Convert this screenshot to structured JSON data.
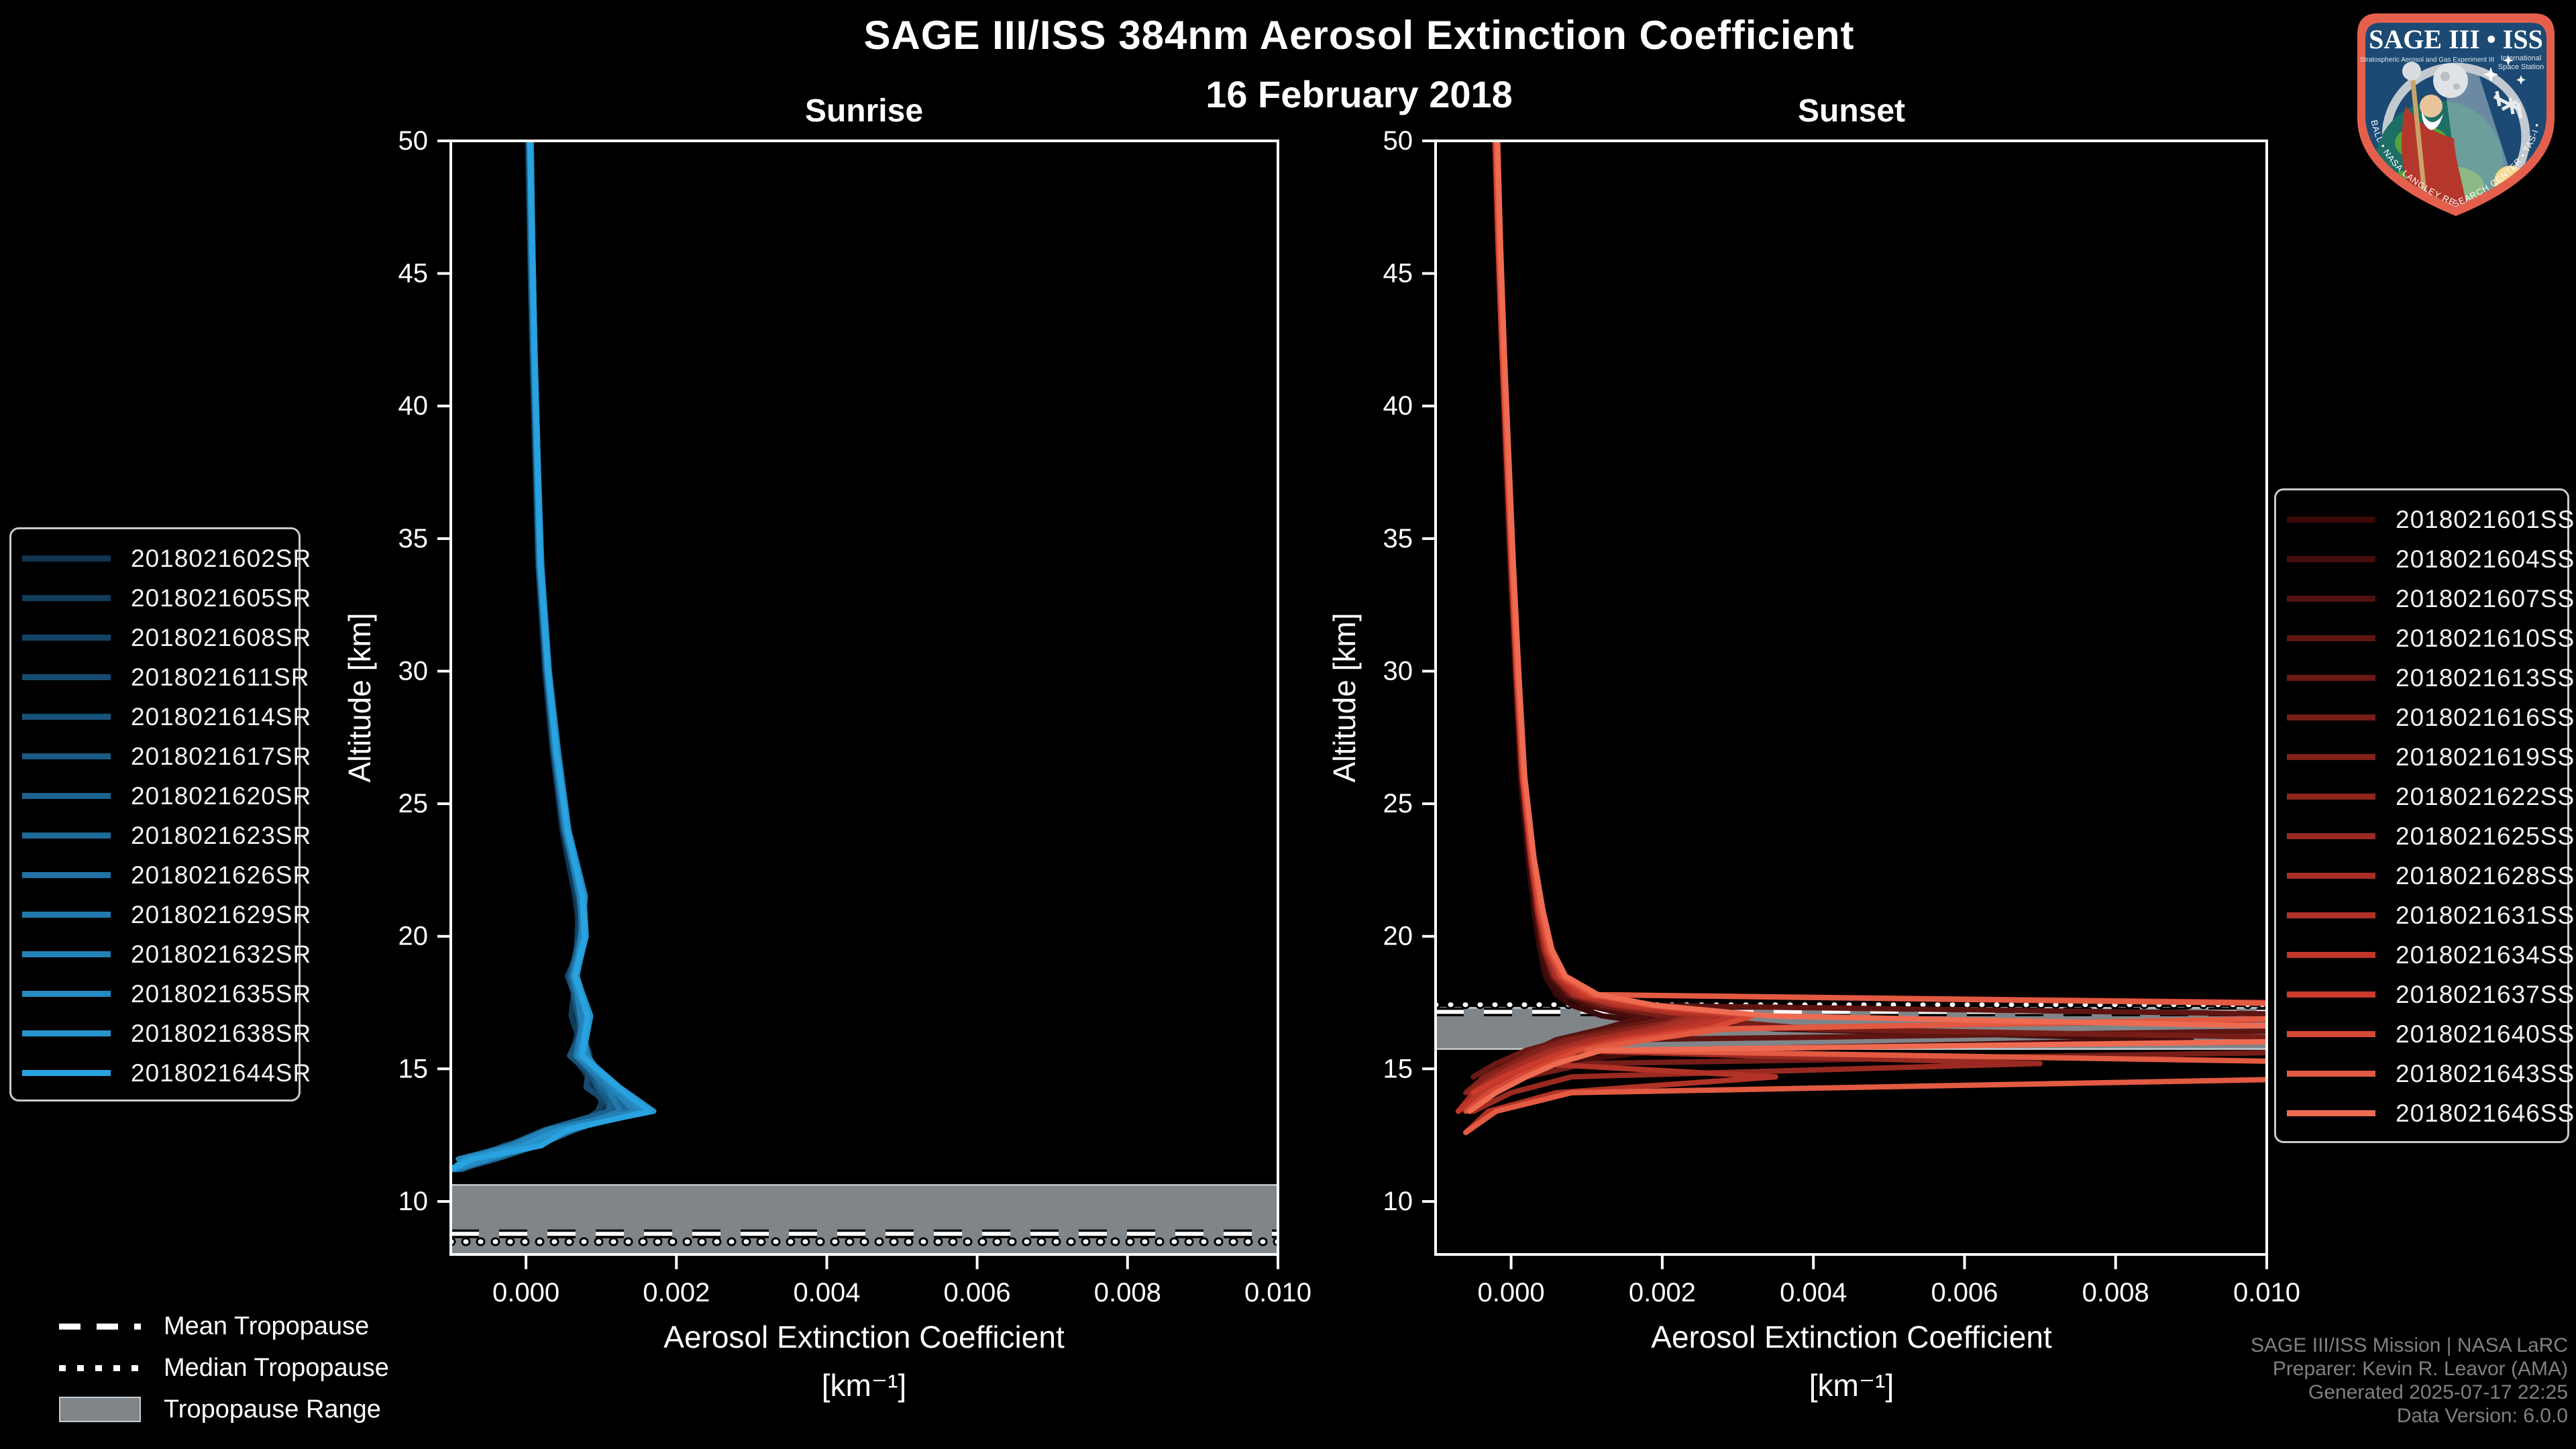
{
  "header": {
    "title": "SAGE III/ISS 384nm Aerosol Extinction Coefficient",
    "date": "16 February 2018"
  },
  "colors": {
    "background": "#000000",
    "text": "#ffffff",
    "tropopause_band": "#808589",
    "tropopause_band_edge": "#c6cbd0",
    "tropopause_line": "#ffffff",
    "tropopause_line_outline": "#000000",
    "footer_text": "#7d827f",
    "legend_border": "#c9c9c9",
    "logo_border": "#e4604d",
    "logo_field": "#1c4a74"
  },
  "tropopause_legend": {
    "items": [
      {
        "label": "Mean Tropopause",
        "style": "dashed"
      },
      {
        "label": "Median Tropopause",
        "style": "dotted"
      },
      {
        "label": "Tropopause Range",
        "style": "band"
      }
    ]
  },
  "footer": {
    "lines": [
      "SAGE III/ISS Mission | NASA LaRC",
      "Preparer: Kevin R. Leavor (AMA)",
      "Generated 2025-07-17 22:25",
      "Data Version: 6.0.0"
    ]
  },
  "logo": {
    "title": "SAGE III • ISS",
    "subtitle_left": "Stratospheric Aerosol and Gas Experiment III",
    "subtitle_right_1": "International",
    "subtitle_right_2": "Space Station",
    "ring_text": "BALL • NASA LANGLEY RESEARCH CENTER • TAS-I • ESA"
  },
  "chart_data": [
    {
      "type": "line",
      "id": "sunrise",
      "title": "Sunrise",
      "xlabel": "Aerosol Extinction Coefficient",
      "xlabel_units": "[km⁻¹]",
      "ylabel": "Altitude [km]",
      "xlim": [
        -0.001,
        0.01
      ],
      "ylim": [
        8,
        50
      ],
      "grid": false,
      "xticks": [
        0.0,
        0.002,
        0.004,
        0.006,
        0.008,
        0.01
      ],
      "xtick_labels": [
        "0.000",
        "0.002",
        "0.004",
        "0.006",
        "0.008",
        "0.010"
      ],
      "yticks": [
        50,
        45,
        40,
        35,
        30,
        25,
        20,
        15,
        10
      ],
      "ytick_labels": [
        "50",
        "45",
        "40",
        "35",
        "30",
        "25",
        "20",
        "15",
        "10"
      ],
      "ext_scale": 0.001,
      "ext_units": "values are multiples of 0.001 km^-1",
      "altitudes_km": [
        50,
        46,
        42,
        38,
        34,
        30,
        27,
        24,
        21.5,
        20,
        18.5,
        17,
        15.5,
        14.3,
        13.4,
        12.7,
        12.1,
        11.6,
        11.2
      ],
      "tropopause": {
        "mean_km": 8.78,
        "median_km": 8.48,
        "range_top_km": 10.62,
        "range_bottom_km": 8.0
      },
      "series": [
        {
          "name": "2018021602SR",
          "color": "#0f3550",
          "ext_1e3": [
            0.02,
            0.05,
            0.08,
            0.12,
            0.16,
            0.25,
            0.35,
            0.48,
            0.65,
            0.72,
            0.58,
            0.72,
            0.62,
            0.92,
            1.05,
            0.4,
            0.05,
            -0.45,
            null
          ]
        },
        {
          "name": "2018021605SR",
          "color": "#113c5a",
          "ext_1e3": [
            0.04,
            0.06,
            0.1,
            0.13,
            0.18,
            0.27,
            0.36,
            0.5,
            0.7,
            0.68,
            0.66,
            0.6,
            0.78,
            0.85,
            1.15,
            0.3,
            -0.2,
            -0.6,
            null
          ]
        },
        {
          "name": "2018021608SR",
          "color": "#134364",
          "ext_1e3": [
            0.03,
            0.07,
            0.09,
            0.14,
            0.17,
            0.26,
            0.38,
            0.52,
            0.68,
            0.8,
            0.55,
            0.75,
            0.65,
            1.1,
            0.95,
            0.6,
            0.1,
            -0.8,
            -0.95
          ]
        },
        {
          "name": "2018021611SR",
          "color": "#154b6f",
          "ext_1e3": [
            0.05,
            0.08,
            0.11,
            0.15,
            0.19,
            0.29,
            0.4,
            0.55,
            0.75,
            0.7,
            0.6,
            0.68,
            0.85,
            0.8,
            1.25,
            0.45,
            -0.3,
            -0.7,
            null
          ]
        },
        {
          "name": "2018021614SR",
          "color": "#175279",
          "ext_1e3": [
            0.04,
            0.07,
            0.1,
            0.14,
            0.18,
            0.28,
            0.37,
            0.5,
            0.72,
            0.76,
            0.64,
            0.82,
            0.58,
            1.05,
            1.4,
            0.35,
            0.0,
            -0.5,
            -0.85
          ]
        },
        {
          "name": "2018021617SR",
          "color": "#195a84",
          "ext_1e3": [
            0.06,
            0.09,
            0.12,
            0.16,
            0.2,
            0.3,
            0.42,
            0.56,
            0.78,
            0.72,
            0.58,
            0.7,
            0.75,
            0.95,
            1.2,
            0.55,
            -0.15,
            -0.65,
            null
          ]
        },
        {
          "name": "2018021620SR",
          "color": "#1b628e",
          "ext_1e3": [
            0.05,
            0.08,
            0.11,
            0.15,
            0.19,
            0.28,
            0.39,
            0.53,
            0.7,
            0.8,
            0.66,
            0.78,
            0.68,
            1.15,
            1.1,
            0.25,
            -0.25,
            -0.85,
            null
          ]
        },
        {
          "name": "2018021623SR",
          "color": "#1d6a99",
          "ext_1e3": [
            0.04,
            0.06,
            0.09,
            0.13,
            0.17,
            0.27,
            0.37,
            0.51,
            0.73,
            0.74,
            0.6,
            0.74,
            0.8,
            1.0,
            1.35,
            0.65,
            0.15,
            -0.4,
            -0.9
          ]
        },
        {
          "name": "2018021626SR",
          "color": "#1f72a3",
          "ext_1e3": [
            0.06,
            0.08,
            0.11,
            0.15,
            0.2,
            0.29,
            0.41,
            0.55,
            0.76,
            0.78,
            0.68,
            0.84,
            0.72,
            1.2,
            1.5,
            0.4,
            -0.1,
            -0.75,
            null
          ]
        },
        {
          "name": "2018021629SR",
          "color": "#217aae",
          "ext_1e3": [
            0.05,
            0.07,
            0.1,
            0.14,
            0.18,
            0.28,
            0.38,
            0.52,
            0.71,
            0.75,
            0.62,
            0.76,
            0.66,
            1.08,
            1.25,
            0.5,
            0.05,
            -0.6,
            -1.0
          ]
        },
        {
          "name": "2018021632SR",
          "color": "#2383b8",
          "ext_1e3": [
            0.07,
            0.09,
            0.12,
            0.16,
            0.21,
            0.31,
            0.43,
            0.57,
            0.79,
            0.73,
            0.65,
            0.72,
            0.82,
            1.12,
            1.45,
            0.3,
            -0.2,
            -0.9,
            null
          ]
        },
        {
          "name": "2018021635SR",
          "color": "#258bc3",
          "ext_1e3": [
            0.05,
            0.08,
            0.11,
            0.15,
            0.19,
            0.29,
            0.4,
            0.54,
            0.74,
            0.77,
            0.63,
            0.8,
            0.7,
            1.18,
            1.55,
            0.6,
            0.1,
            -0.5,
            -0.95
          ]
        },
        {
          "name": "2018021638SR",
          "color": "#2794ce",
          "ext_1e3": [
            0.06,
            0.09,
            0.12,
            0.16,
            0.2,
            0.3,
            0.41,
            0.56,
            0.77,
            0.8,
            0.67,
            0.86,
            0.76,
            1.25,
            1.7,
            0.45,
            -0.05,
            -0.8,
            -1.0
          ]
        },
        {
          "name": "2018021644SR",
          "color": "#29a3e0",
          "ext_1e3": [
            0.05,
            0.08,
            0.11,
            0.15,
            0.19,
            0.29,
            0.4,
            0.55,
            0.75,
            0.78,
            0.65,
            0.82,
            0.74,
            1.22,
            1.65,
            0.55,
            0.2,
            -0.7,
            -1.0
          ]
        }
      ]
    },
    {
      "type": "line",
      "id": "sunset",
      "title": "Sunset",
      "xlabel": "Aerosol Extinction Coefficient",
      "xlabel_units": "[km⁻¹]",
      "ylabel": "Altitude [km]",
      "xlim": [
        -0.001,
        0.01
      ],
      "ylim": [
        8,
        50
      ],
      "grid": false,
      "xticks": [
        0.0,
        0.002,
        0.004,
        0.006,
        0.008,
        0.01
      ],
      "xtick_labels": [
        "0.000",
        "0.002",
        "0.004",
        "0.006",
        "0.008",
        "0.010"
      ],
      "yticks": [
        50,
        45,
        40,
        35,
        30,
        25,
        20,
        15,
        10
      ],
      "ytick_labels": [
        "50",
        "45",
        "40",
        "35",
        "30",
        "25",
        "20",
        "15",
        "10"
      ],
      "ext_scale": 0.001,
      "ext_units": "values are multiples of 0.001 km^-1",
      "altitudes_km": [
        50,
        46,
        42,
        38,
        34,
        30,
        26,
        23,
        21,
        19.5,
        18.5,
        17.8,
        17.4,
        17.0,
        16.5,
        16.1,
        15.7,
        15.2,
        14.7,
        14.1,
        13.4,
        12.6
      ],
      "tropopause": {
        "mean_km": 17.15,
        "median_km": 17.42,
        "range_top_km": 17.3,
        "range_bottom_km": 15.75
      },
      "series": [
        {
          "name": "2018021601SS",
          "color": "#3a0909",
          "ext_1e3": [
            -0.2,
            -0.15,
            -0.12,
            -0.08,
            -0.02,
            0.05,
            0.12,
            0.22,
            0.3,
            0.38,
            0.45,
            0.6,
            0.8,
            1.2,
            2.5,
            1.0,
            0.4,
            0.1,
            -0.2,
            -0.4,
            null,
            null
          ]
        },
        {
          "name": "2018021604SS",
          "color": "#460d0c",
          "ext_1e3": [
            -0.22,
            -0.18,
            -0.12,
            -0.06,
            0.0,
            0.06,
            0.14,
            0.24,
            0.32,
            0.4,
            0.5,
            0.7,
            1.0,
            1.6,
            3.5,
            9.0,
            2.0,
            0.5,
            0.0,
            -0.5,
            null,
            null
          ]
        },
        {
          "name": "2018021607SS",
          "color": "#52110f",
          "ext_1e3": [
            -0.18,
            -0.14,
            -0.1,
            -0.05,
            0.02,
            0.08,
            0.15,
            0.25,
            0.35,
            0.42,
            0.55,
            0.75,
            1.1,
            1.8,
            1.2,
            0.6,
            0.3,
            -0.1,
            -0.4,
            null,
            null,
            null
          ]
        },
        {
          "name": "2018021610SS",
          "color": "#5e1512",
          "ext_1e3": [
            -0.2,
            -0.16,
            -0.11,
            -0.05,
            0.01,
            0.07,
            0.15,
            0.26,
            0.34,
            0.44,
            0.6,
            0.9,
            1.5,
            12.0,
            12.0,
            1.5,
            0.6,
            0.2,
            -0.3,
            null,
            null,
            null
          ]
        },
        {
          "name": "2018021613SS",
          "color": "#6a1915",
          "ext_1e3": [
            -0.19,
            -0.15,
            -0.1,
            -0.04,
            0.02,
            0.08,
            0.16,
            0.27,
            0.36,
            0.46,
            0.58,
            0.8,
            1.3,
            2.2,
            1.4,
            0.7,
            0.2,
            -0.2,
            -0.5,
            null,
            null,
            null
          ]
        },
        {
          "name": "2018021616SS",
          "color": "#761d18",
          "ext_1e3": [
            -0.21,
            -0.17,
            -0.12,
            -0.06,
            0.0,
            0.06,
            0.14,
            0.25,
            0.34,
            0.43,
            0.55,
            0.78,
            1.2,
            2.0,
            4.0,
            12.0,
            12.0,
            1.0,
            0.2,
            -0.4,
            null,
            null
          ]
        },
        {
          "name": "2018021619SS",
          "color": "#82221b",
          "ext_1e3": [
            -0.18,
            -0.14,
            -0.09,
            -0.04,
            0.03,
            0.09,
            0.17,
            0.28,
            0.37,
            0.47,
            0.6,
            0.85,
            1.4,
            2.6,
            1.6,
            0.8,
            0.35,
            0.0,
            -0.35,
            -0.6,
            null,
            null
          ]
        },
        {
          "name": "2018021622SS",
          "color": "#8e261e",
          "ext_1e3": [
            -0.2,
            -0.16,
            -0.11,
            -0.05,
            0.01,
            0.08,
            0.16,
            0.26,
            0.35,
            0.45,
            0.58,
            0.82,
            1.35,
            2.4,
            1.8,
            1.0,
            0.5,
            0.1,
            -0.25,
            -0.55,
            null,
            null
          ]
        },
        {
          "name": "2018021625SS",
          "color": "#9a2a21",
          "ext_1e3": [
            -0.19,
            -0.15,
            -0.1,
            -0.05,
            0.02,
            0.08,
            0.16,
            0.27,
            0.36,
            0.46,
            0.6,
            0.88,
            1.45,
            2.8,
            2.0,
            1.2,
            0.6,
            7.0,
            0.8,
            0.0,
            -0.5,
            null
          ]
        },
        {
          "name": "2018021628SS",
          "color": "#a62e24",
          "ext_1e3": [
            -0.21,
            -0.17,
            -0.12,
            -0.06,
            0.01,
            0.07,
            0.15,
            0.26,
            0.35,
            0.45,
            0.58,
            0.84,
            1.4,
            2.5,
            1.9,
            1.1,
            0.55,
            0.15,
            -0.2,
            -0.5,
            -0.7,
            null
          ]
        },
        {
          "name": "2018021631SS",
          "color": "#b23227",
          "ext_1e3": [
            -0.2,
            -0.16,
            -0.11,
            -0.05,
            0.02,
            0.08,
            0.17,
            0.28,
            0.38,
            0.48,
            0.62,
            0.9,
            1.5,
            2.7,
            2.1,
            1.3,
            0.7,
            0.3,
            3.5,
            0.6,
            -0.3,
            -0.6
          ]
        },
        {
          "name": "2018021634SS",
          "color": "#be372a",
          "ext_1e3": [
            -0.19,
            -0.15,
            -0.1,
            -0.04,
            0.02,
            0.09,
            0.17,
            0.29,
            0.39,
            0.5,
            0.64,
            0.94,
            1.6,
            3.0,
            2.3,
            1.4,
            0.8,
            0.4,
            0.0,
            -0.4,
            -0.7,
            null
          ]
        },
        {
          "name": "2018021637SS",
          "color": "#ca3b2d",
          "ext_1e3": [
            -0.21,
            -0.17,
            -0.12,
            -0.06,
            0.0,
            0.07,
            0.15,
            0.27,
            0.37,
            0.48,
            0.65,
            1.0,
            13.0,
            13.0,
            2.5,
            1.5,
            0.8,
            0.3,
            -0.1,
            -0.5,
            null,
            null
          ]
        },
        {
          "name": "2018021640SS",
          "color": "#d64934",
          "ext_1e3": [
            -0.2,
            -0.16,
            -0.11,
            -0.05,
            0.01,
            0.08,
            0.16,
            0.28,
            0.38,
            0.5,
            0.66,
            1.05,
            1.8,
            3.2,
            2.6,
            1.6,
            0.9,
            0.5,
            0.1,
            -0.3,
            -0.6,
            null
          ]
        },
        {
          "name": "2018021643SS",
          "color": "#e25a42",
          "ext_1e3": [
            -0.19,
            -0.15,
            -0.1,
            -0.04,
            0.02,
            0.09,
            0.18,
            0.3,
            0.4,
            0.52,
            0.7,
            1.1,
            12.0,
            12.0,
            2.8,
            1.8,
            1.0,
            12.0,
            12.0,
            0.8,
            -0.2,
            -0.6
          ]
        },
        {
          "name": "2018021646SS",
          "color": "#ee6b52",
          "ext_1e3": [
            -0.18,
            -0.14,
            -0.09,
            -0.03,
            0.03,
            0.1,
            0.18,
            0.3,
            0.42,
            0.54,
            0.72,
            1.15,
            1.9,
            3.4,
            12.0,
            12.0,
            1.2,
            0.6,
            0.2,
            -0.2,
            -0.55,
            null
          ]
        }
      ]
    }
  ]
}
